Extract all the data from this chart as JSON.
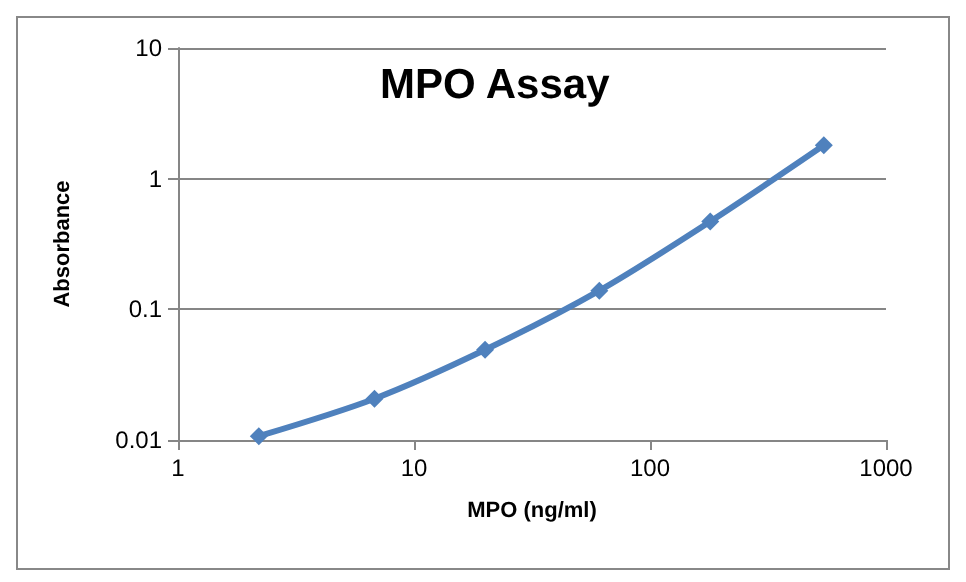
{
  "chart_data": {
    "type": "line",
    "title": "MPO Assay",
    "xlabel": "MPO (ng/ml)",
    "ylabel": "Absorbance",
    "x": [
      2.2,
      6.8,
      20,
      61,
      180,
      545
    ],
    "series": [
      {
        "color": "#4f81bd",
        "values": [
          0.0107,
          0.0207,
          0.049,
          0.139,
          0.47,
          1.8
        ]
      }
    ],
    "log": "xy",
    "xlim": [
      1,
      1000
    ],
    "xticks": [
      1,
      10,
      100,
      1000
    ],
    "ylim": [
      0.01,
      10
    ],
    "yticks": [
      0.01,
      0.1,
      1,
      10
    ],
    "grid": "y",
    "marker": "diamond",
    "line_style": "solid"
  }
}
